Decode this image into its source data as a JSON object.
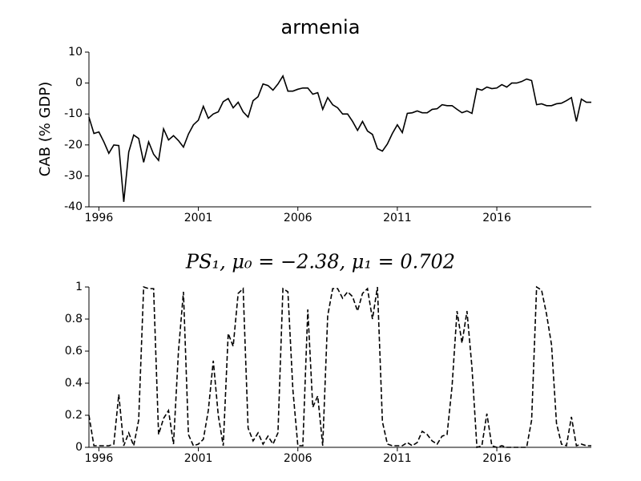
{
  "chart_data": [
    {
      "type": "line",
      "title": "armenia",
      "y_label": "CAB (% GDP)",
      "x": [
        1995.5,
        1995.75,
        1996,
        1996.25,
        1996.5,
        1996.75,
        1997,
        1997.25,
        1997.5,
        1997.75,
        1998,
        1998.25,
        1998.5,
        1998.75,
        1999,
        1999.25,
        1999.5,
        1999.75,
        2000,
        2000.25,
        2000.5,
        2000.75,
        2001,
        2001.25,
        2001.5,
        2001.75,
        2002,
        2002.25,
        2002.5,
        2002.75,
        2003,
        2003.25,
        2003.5,
        2003.75,
        2004,
        2004.25,
        2004.5,
        2004.75,
        2005,
        2005.25,
        2005.5,
        2005.75,
        2006,
        2006.25,
        2006.5,
        2006.75,
        2007,
        2007.25,
        2007.5,
        2007.75,
        2008,
        2008.25,
        2008.5,
        2008.75,
        2009,
        2009.25,
        2009.5,
        2009.75,
        2010,
        2010.25,
        2010.5,
        2010.75,
        2011,
        2011.25,
        2011.5,
        2011.75,
        2012,
        2012.25,
        2012.5,
        2012.75,
        2013,
        2013.25,
        2013.5,
        2013.75,
        2014,
        2014.25,
        2014.5,
        2014.75,
        2015,
        2015.25,
        2015.5,
        2015.75,
        2016,
        2016.25,
        2016.5,
        2016.75,
        2017,
        2017.25,
        2017.5,
        2017.75,
        2018,
        2018.25,
        2018.5,
        2018.75,
        2019,
        2019.25,
        2019.5,
        2019.75,
        2020,
        2020.25,
        2020.5,
        2020.75
      ],
      "series": [
        {
          "name": "CAB",
          "color": "#000000",
          "dash": false,
          "values": [
            -11,
            -16.3,
            -15.8,
            -19,
            -22.7,
            -20,
            -20.2,
            -38.4,
            -22.3,
            -16.8,
            -17.9,
            -25.6,
            -19,
            -23,
            -25,
            -14.8,
            -18.4,
            -17,
            -18.6,
            -20.7,
            -16.5,
            -13.5,
            -12,
            -7.5,
            -11.4,
            -10,
            -9.3,
            -6,
            -5,
            -8,
            -6.2,
            -9.3,
            -11,
            -5.7,
            -4.4,
            -0.3,
            -0.8,
            -2.3,
            -0.3,
            2.3,
            -2.6,
            -2.6,
            -2,
            -1.6,
            -1.6,
            -3.6,
            -3.1,
            -8.5,
            -4.7,
            -7,
            -8,
            -10,
            -10,
            -12.4,
            -15.3,
            -12.4,
            -15.5,
            -16.6,
            -21.2,
            -22,
            -19.7,
            -16.3,
            -13.5,
            -16,
            -9.8,
            -9.6,
            -9,
            -9.6,
            -9.6,
            -8.5,
            -8.3,
            -7,
            -7.3,
            -7.3,
            -8.5,
            -9.6,
            -9,
            -9.8,
            -1.8,
            -2.3,
            -1.3,
            -1.8,
            -1.6,
            -0.5,
            -1.3,
            0,
            0,
            0.5,
            1.3,
            0.8,
            -7,
            -6.7,
            -7.3,
            -7.3,
            -6.7,
            -6.5,
            -5.7,
            -4.7,
            -12.4,
            -5.2,
            -6.2,
            -6.2
          ]
        }
      ],
      "xlim": [
        1995.5,
        2020.75
      ],
      "xticks": [
        1996,
        2001,
        2006,
        2011,
        2016
      ],
      "ylim": [
        -40,
        10
      ],
      "yticks": [
        -40,
        -30,
        -20,
        -10,
        0,
        10
      ]
    },
    {
      "type": "line",
      "title": "PS₁, μ₀ = −2.38, μ₁ = 0.702",
      "x": [
        1995.5,
        1995.75,
        1996,
        1996.25,
        1996.5,
        1996.75,
        1997,
        1997.25,
        1997.5,
        1997.75,
        1998,
        1998.25,
        1998.5,
        1998.75,
        1999,
        1999.25,
        1999.5,
        1999.75,
        2000,
        2000.25,
        2000.5,
        2000.75,
        2001,
        2001.25,
        2001.5,
        2001.75,
        2002,
        2002.25,
        2002.5,
        2002.75,
        2003,
        2003.25,
        2003.5,
        2003.75,
        2004,
        2004.25,
        2004.5,
        2004.75,
        2005,
        2005.25,
        2005.5,
        2005.75,
        2006,
        2006.25,
        2006.5,
        2006.75,
        2007,
        2007.25,
        2007.5,
        2007.75,
        2008,
        2008.25,
        2008.5,
        2008.75,
        2009,
        2009.25,
        2009.5,
        2009.75,
        2010,
        2010.25,
        2010.5,
        2010.75,
        2011,
        2011.25,
        2011.5,
        2011.75,
        2012,
        2012.25,
        2012.5,
        2012.75,
        2013,
        2013.25,
        2013.5,
        2013.75,
        2014,
        2014.25,
        2014.5,
        2014.75,
        2015,
        2015.25,
        2015.5,
        2015.75,
        2016,
        2016.25,
        2016.5,
        2016.75,
        2017,
        2017.25,
        2017.5,
        2017.75,
        2018,
        2018.25,
        2018.5,
        2018.75,
        2019,
        2019.25,
        2019.5,
        2019.75,
        2020,
        2020.25,
        2020.5,
        2020.75
      ],
      "series": [
        {
          "name": "PS1",
          "color": "#000000",
          "dash": true,
          "values": [
            0.2,
            0.01,
            0.01,
            0.01,
            0.01,
            0.02,
            0.33,
            0.01,
            0.09,
            0.01,
            0.17,
            1.0,
            0.99,
            0.99,
            0.08,
            0.18,
            0.23,
            0.02,
            0.6,
            0.97,
            0.08,
            0.01,
            0.02,
            0.05,
            0.23,
            0.54,
            0.2,
            0.01,
            0.71,
            0.63,
            0.96,
            0.99,
            0.12,
            0.04,
            0.09,
            0.02,
            0.07,
            0.02,
            0.09,
            0.99,
            0.97,
            0.36,
            0.01,
            0.01,
            0.86,
            0.25,
            0.32,
            0.01,
            0.82,
            0.99,
            0.99,
            0.93,
            0.97,
            0.94,
            0.85,
            0.96,
            0.99,
            0.8,
            1.0,
            0.16,
            0.02,
            0.01,
            0.01,
            0.01,
            0.03,
            0.01,
            0.03,
            0.1,
            0.08,
            0.04,
            0.02,
            0.07,
            0.08,
            0.38,
            0.85,
            0.65,
            0.85,
            0.5,
            0.0,
            0.01,
            0.21,
            0.01,
            0.0,
            0.01,
            0.0,
            0.0,
            0.0,
            0.0,
            0.0,
            0.17,
            1.0,
            0.98,
            0.83,
            0.64,
            0.15,
            0.02,
            0.01,
            0.19,
            0.01,
            0.02,
            0.01,
            0.01
          ]
        }
      ],
      "xlim": [
        1995.5,
        2020.75
      ],
      "xticks": [
        1996,
        2001,
        2006,
        2011,
        2016
      ],
      "ylim": [
        0,
        1
      ],
      "yticks": [
        0,
        0.2,
        0.4,
        0.6,
        0.8,
        1
      ]
    }
  ]
}
